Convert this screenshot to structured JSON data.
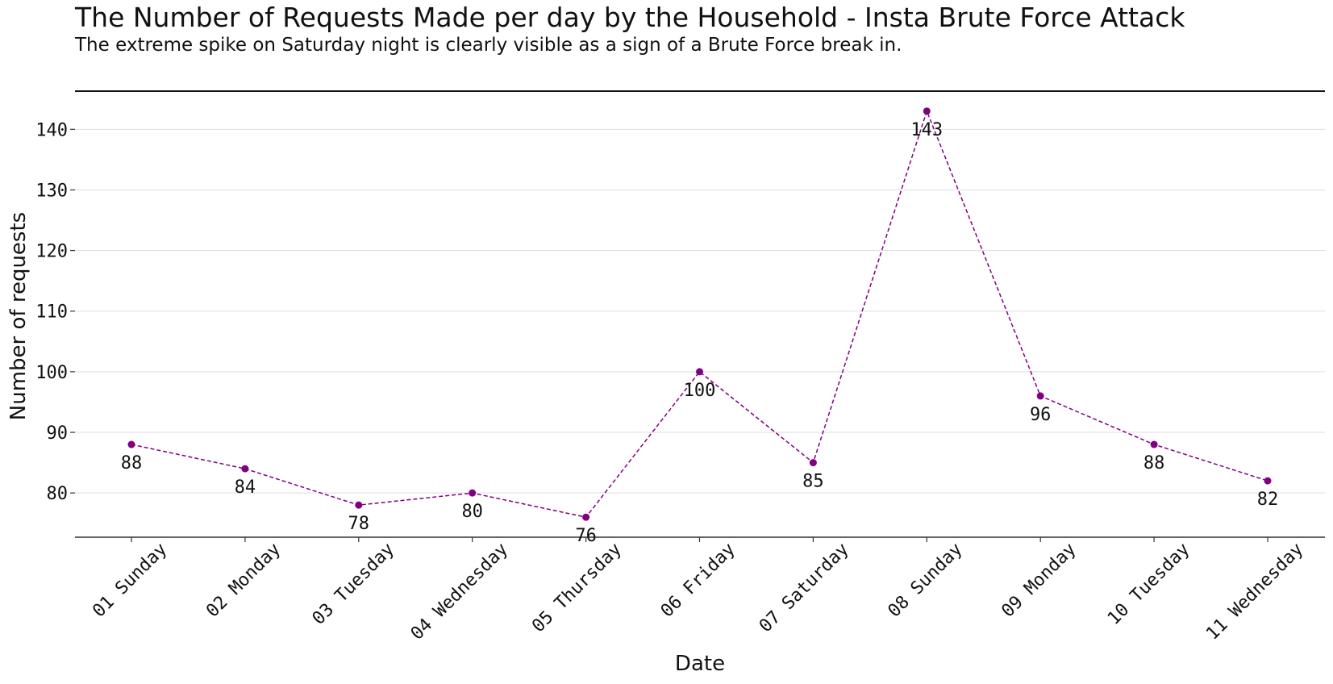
{
  "title": "The Number of Requests Made per day by the Household - Insta Brute Force Attack",
  "subtitle": "The extreme spike on Saturday night is clearly visible as a sign of a Brute Force break in.",
  "chart_data": {
    "type": "line",
    "categories": [
      "01 Sunday",
      "02 Monday",
      "03 Tuesday",
      "04 Wednesday",
      "05 Thursday",
      "06 Friday",
      "07 Saturday",
      "08 Sunday",
      "09 Monday",
      "10 Tuesday",
      "11 Wednesday"
    ],
    "values": [
      88,
      84,
      78,
      80,
      76,
      100,
      85,
      143,
      96,
      88,
      82
    ],
    "xlabel": "Date",
    "ylabel": "Number of requests",
    "yticks": [
      80,
      90,
      100,
      110,
      120,
      130,
      140
    ],
    "ylim": [
      72.7,
      146.3
    ],
    "grid": "horizontal",
    "line_style": "dashed",
    "color": "#800080"
  }
}
